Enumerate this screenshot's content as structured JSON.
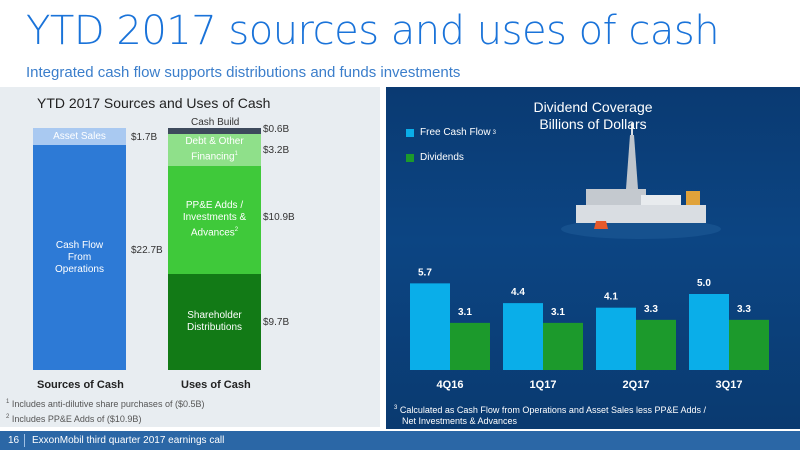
{
  "title": "YTD 2017 sources and uses of cash",
  "subtitle": "Integrated cash flow supports distributions and funds investments",
  "left": {
    "title": "YTD 2017 Sources and Uses of Cash",
    "sources": {
      "label": "Sources of Cash",
      "segments": {
        "asset_sales": {
          "label": "Asset Sales",
          "value": "$1.7B"
        },
        "cfo": {
          "label": "Cash Flow From Operations",
          "value": "$22.7B"
        }
      }
    },
    "uses": {
      "label": "Uses of Cash",
      "segments": {
        "cash_build": {
          "label": "Cash Build",
          "value": "$0.6B"
        },
        "debt": {
          "label": "Debt & Other Financing",
          "sup": "1",
          "value": "$3.2B"
        },
        "ppe": {
          "label": "PP&E Adds / Investments & Advances",
          "sup": "2",
          "value": "$10.9B"
        },
        "shareholder": {
          "label": "Shareholder Distributions",
          "value": "$9.7B"
        }
      }
    },
    "footnotes": {
      "f1": {
        "num": "1",
        "text": "Includes anti-dilutive share purchases of ($0.5B)"
      },
      "f2": {
        "num": "2",
        "text": "Includes PP&E Adds of ($10.9B)"
      }
    }
  },
  "right": {
    "title_line1": "Dividend Coverage",
    "title_line2": "Billions of Dollars",
    "legend": {
      "fcf": {
        "label": "Free Cash Flow",
        "sup": "3"
      },
      "div": {
        "label": "Dividends"
      }
    },
    "footnote": {
      "num": "3",
      "line1": "Calculated as Cash Flow from Operations and Asset Sales less PP&E Adds /",
      "line2": "Net Investments & Advances"
    }
  },
  "footer": {
    "page": "16",
    "name": "ExxonMobil third quarter 2017 earnings call"
  },
  "colors": {
    "fcf": "#0aaee9",
    "dividends": "#1c9a2c",
    "cfo": "#2d7ad6",
    "asset_sales": "#a9c9f1",
    "cash_build": "#3d4a5c",
    "debt": "#8fe08a",
    "ppe": "#3fc93a",
    "shareholder": "#127a16"
  },
  "chart_data": [
    {
      "type": "bar",
      "title": "YTD 2017 Sources and Uses of Cash",
      "categories": [
        "Sources of Cash",
        "Uses of Cash"
      ],
      "stacked": true,
      "series": [
        {
          "name": "Cash Flow From Operations",
          "values": [
            22.7,
            0
          ]
        },
        {
          "name": "Asset Sales",
          "values": [
            1.7,
            0
          ]
        },
        {
          "name": "Shareholder Distributions",
          "values": [
            0,
            9.7
          ]
        },
        {
          "name": "PP&E Adds / Investments & Advances",
          "values": [
            0,
            10.9
          ]
        },
        {
          "name": "Debt & Other Financing",
          "values": [
            0,
            3.2
          ]
        },
        {
          "name": "Cash Build",
          "values": [
            0,
            0.6
          ]
        }
      ],
      "unit": "$B"
    },
    {
      "type": "bar",
      "title": "Dividend Coverage",
      "subtitle": "Billions of Dollars",
      "categories": [
        "4Q16",
        "1Q17",
        "2Q17",
        "3Q17"
      ],
      "series": [
        {
          "name": "Free Cash Flow",
          "values": [
            5.7,
            4.4,
            4.1,
            5.0
          ]
        },
        {
          "name": "Dividends",
          "values": [
            3.1,
            3.1,
            3.3,
            3.3
          ]
        }
      ],
      "legend": "top-left"
    }
  ]
}
